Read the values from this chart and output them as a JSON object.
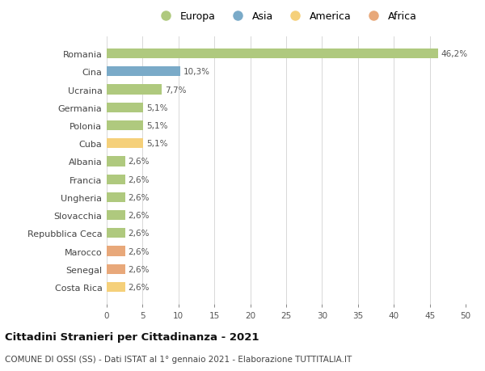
{
  "countries": [
    "Romania",
    "Cina",
    "Ucraina",
    "Germania",
    "Polonia",
    "Cuba",
    "Albania",
    "Francia",
    "Ungheria",
    "Slovacchia",
    "Repubblica Ceca",
    "Marocco",
    "Senegal",
    "Costa Rica"
  ],
  "values": [
    46.2,
    10.3,
    7.7,
    5.1,
    5.1,
    5.1,
    2.6,
    2.6,
    2.6,
    2.6,
    2.6,
    2.6,
    2.6,
    2.6
  ],
  "labels": [
    "46,2%",
    "10,3%",
    "7,7%",
    "5,1%",
    "5,1%",
    "5,1%",
    "2,6%",
    "2,6%",
    "2,6%",
    "2,6%",
    "2,6%",
    "2,6%",
    "2,6%",
    "2,6%"
  ],
  "colors": [
    "#afc97e",
    "#7aaac8",
    "#afc97e",
    "#afc97e",
    "#afc97e",
    "#f5d07a",
    "#afc97e",
    "#afc97e",
    "#afc97e",
    "#afc97e",
    "#afc97e",
    "#e8a87a",
    "#e8a87a",
    "#f5d07a"
  ],
  "legend_labels": [
    "Europa",
    "Asia",
    "America",
    "Africa"
  ],
  "legend_colors": [
    "#afc97e",
    "#7aaac8",
    "#f5d07a",
    "#e8a87a"
  ],
  "xlim": [
    0,
    50
  ],
  "xticks": [
    0,
    5,
    10,
    15,
    20,
    25,
    30,
    35,
    40,
    45,
    50
  ],
  "title": "Cittadini Stranieri per Cittadinanza - 2021",
  "subtitle": "COMUNE DI OSSI (SS) - Dati ISTAT al 1° gennaio 2021 - Elaborazione TUTTITALIA.IT",
  "bg_color": "#ffffff",
  "grid_color": "#d8d8d8",
  "bar_height": 0.55
}
